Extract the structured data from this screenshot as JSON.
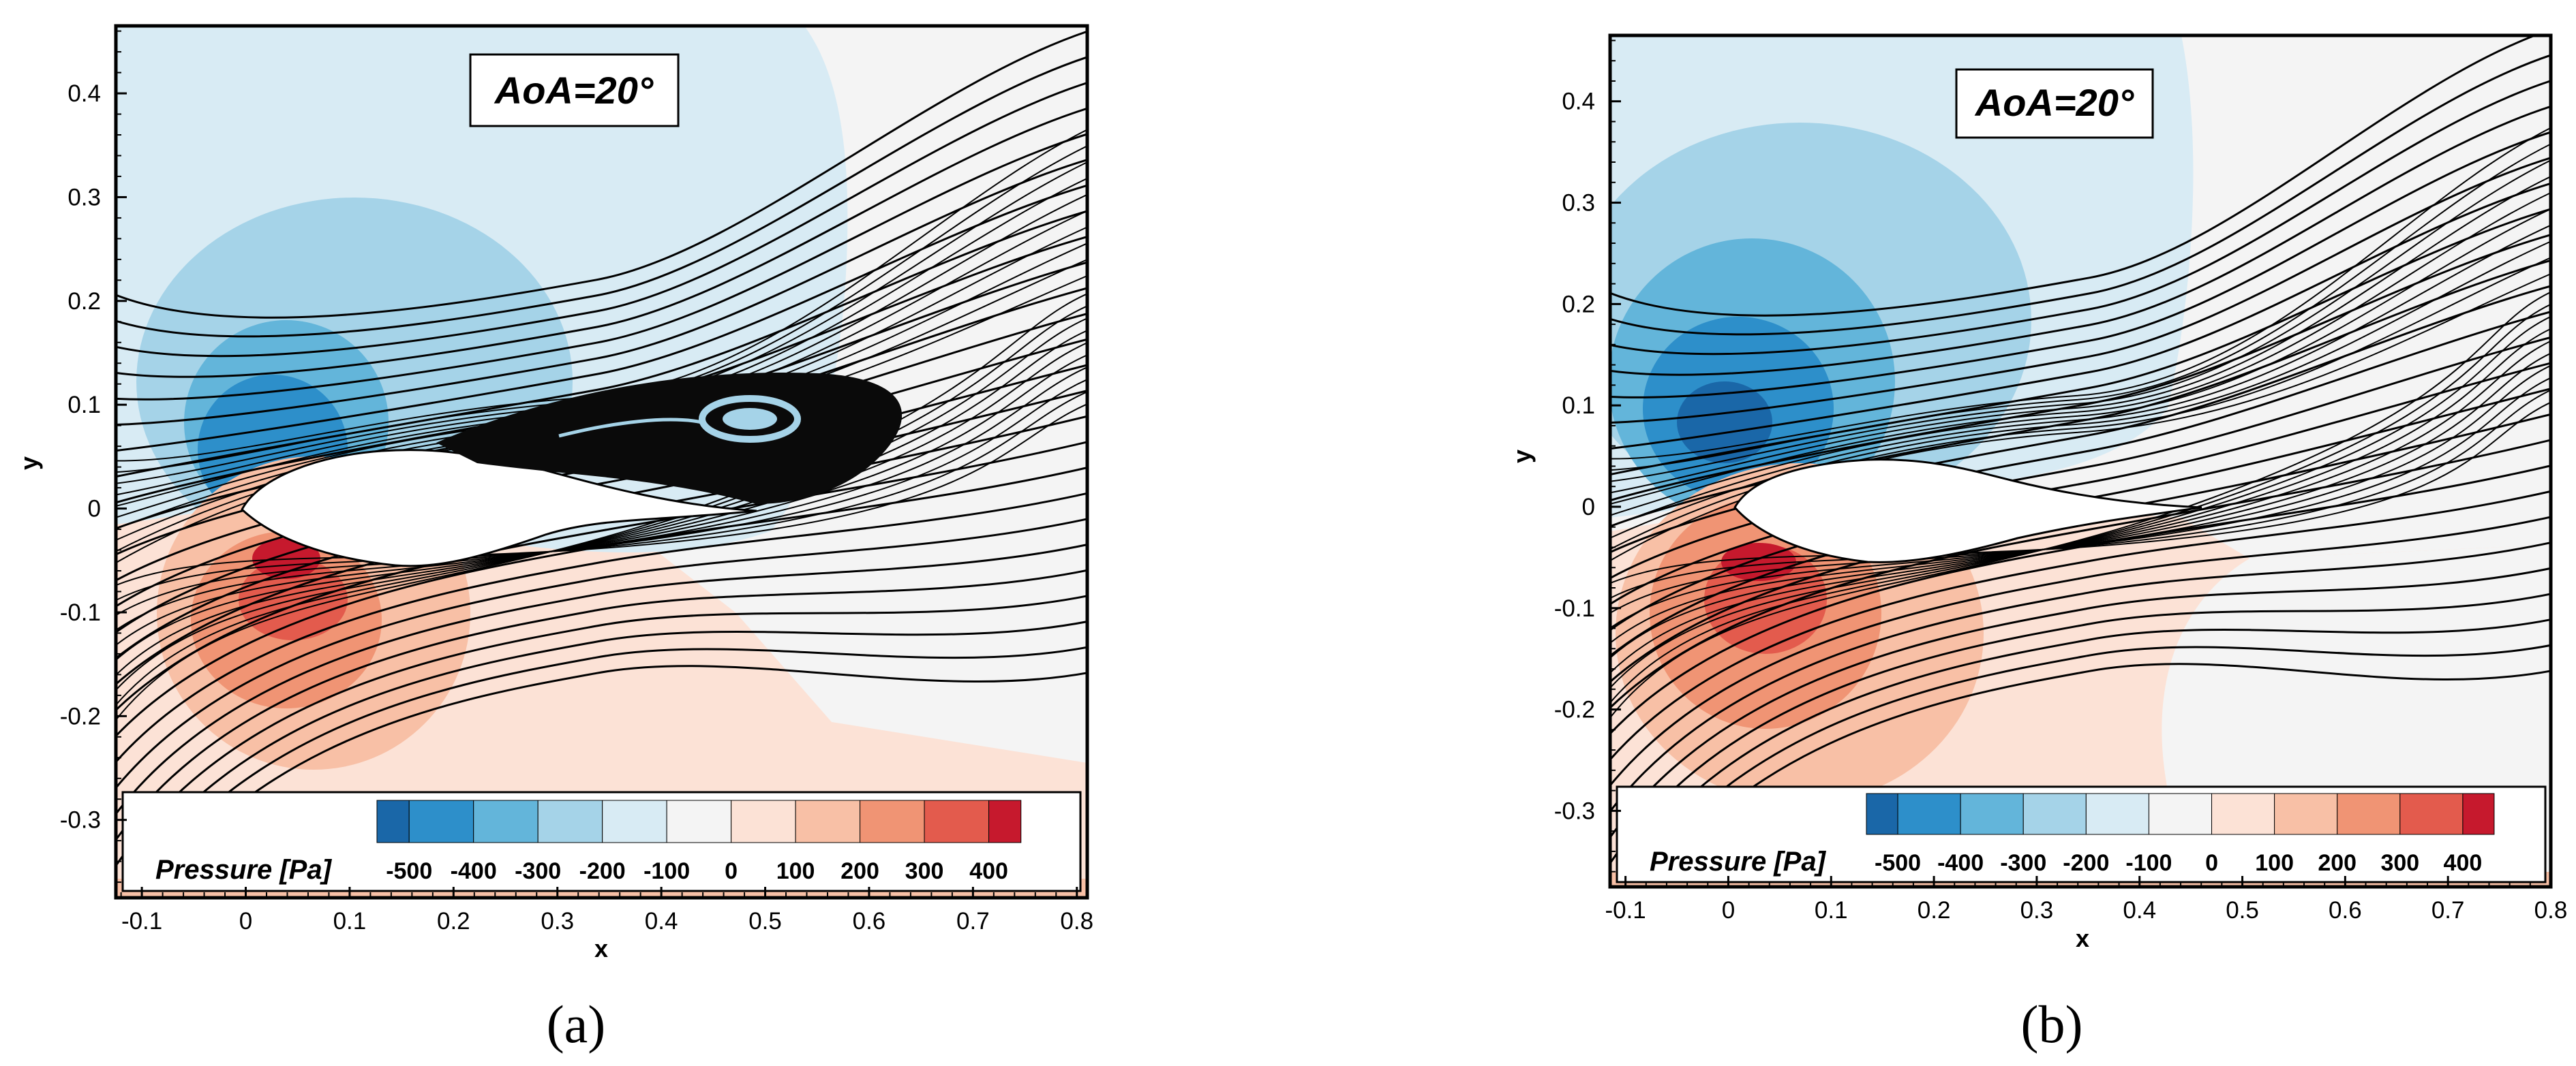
{
  "chart_data": [
    {
      "type": "contour",
      "panel_label": "(a)",
      "title": "",
      "annotation": "AoA=20°",
      "xlabel": "x",
      "ylabel": "y",
      "xlim": [
        -0.125,
        0.81
      ],
      "ylim": [
        -0.375,
        0.465
      ],
      "xticks": [
        -0.1,
        0,
        0.1,
        0.2,
        0.3,
        0.4,
        0.5,
        0.6,
        0.7,
        0.8
      ],
      "xtick_labels": [
        "-0.1",
        "0",
        "0.1",
        "0.2",
        "0.3",
        "0.4",
        "0.5",
        "0.6",
        "0.7",
        "0.8"
      ],
      "yticks": [
        -0.3,
        -0.2,
        -0.1,
        0,
        0.1,
        0.2,
        0.3,
        0.4
      ],
      "ytick_labels": [
        "-0.3",
        "-0.2",
        "-0.1",
        "0",
        "0.1",
        "0.2",
        "0.3",
        "0.4"
      ],
      "colorbar": {
        "title": "Pressure [Pa]",
        "levels": [
          -500,
          -400,
          -300,
          -200,
          -100,
          0,
          100,
          200,
          300,
          400
        ],
        "level_labels": [
          "-500",
          "-400",
          "-300",
          "-200",
          "-100",
          "0",
          "100",
          "200",
          "300",
          "400"
        ],
        "colors": [
          "#1a67a8",
          "#2d8fca",
          "#63b5da",
          "#a5d3e8",
          "#d8ebf4",
          "#f4f4f4",
          "#fce2d6",
          "#f8c0a6",
          "#f09474",
          "#e35b4d",
          "#c6192d"
        ]
      },
      "features": [
        "separated flow",
        "recirculation vortex on suction side centred near x=0.48, y=0.08"
      ]
    },
    {
      "type": "contour",
      "panel_label": "(b)",
      "title": "",
      "annotation": "AoA=20°",
      "xlabel": "x",
      "ylabel": "y",
      "xlim": [
        -0.115,
        0.8
      ],
      "ylim": [
        -0.375,
        0.465
      ],
      "xticks": [
        -0.1,
        0,
        0.1,
        0.2,
        0.3,
        0.4,
        0.5,
        0.6,
        0.7,
        0.8
      ],
      "xtick_labels": [
        "-0.1",
        "0",
        "0.1",
        "0.2",
        "0.3",
        "0.4",
        "0.5",
        "0.6",
        "0.7",
        "0.8"
      ],
      "yticks": [
        -0.3,
        -0.2,
        -0.1,
        0,
        0.1,
        0.2,
        0.3,
        0.4
      ],
      "ytick_labels": [
        "-0.3",
        "-0.2",
        "-0.1",
        "0",
        "0.1",
        "0.2",
        "0.3",
        "0.4"
      ],
      "colorbar": {
        "title": "Pressure [Pa]",
        "levels": [
          -500,
          -400,
          -300,
          -200,
          -100,
          0,
          100,
          200,
          300,
          400
        ],
        "level_labels": [
          "-500",
          "-400",
          "-300",
          "-200",
          "-100",
          "0",
          "100",
          "200",
          "300",
          "400"
        ],
        "colors": [
          "#1a67a8",
          "#2d8fca",
          "#63b5da",
          "#a5d3e8",
          "#d8ebf4",
          "#f4f4f4",
          "#fce2d6",
          "#f8c0a6",
          "#f09474",
          "#e35b4d",
          "#c6192d"
        ]
      },
      "features": [
        "attached flow along suction side"
      ]
    }
  ]
}
